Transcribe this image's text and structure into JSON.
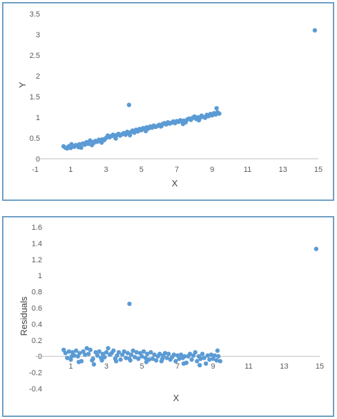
{
  "chart_data": [
    {
      "type": "scatter",
      "title": "",
      "xlabel": "X",
      "ylabel": "Y",
      "xlim": [
        -1,
        15
      ],
      "ylim": [
        0,
        3.5
      ],
      "xticks": [
        "-1",
        "1",
        "3",
        "5",
        "7",
        "9",
        "11",
        "13",
        "15"
      ],
      "yticks": [
        "0",
        "0.5",
        "1",
        "1.5",
        "2",
        "2.5",
        "3",
        "3.5"
      ],
      "grid": false,
      "color": "#5b9bd5",
      "series": [
        {
          "points": [
            [
              0.6,
              0.3
            ],
            [
              0.7,
              0.27
            ],
            [
              0.8,
              0.25
            ],
            [
              0.9,
              0.3
            ],
            [
              1.0,
              0.26
            ],
            [
              1.1,
              0.32
            ],
            [
              1.2,
              0.29
            ],
            [
              1.3,
              0.33
            ],
            [
              1.4,
              0.31
            ],
            [
              1.5,
              0.35
            ],
            [
              1.6,
              0.27
            ],
            [
              1.7,
              0.37
            ],
            [
              1.8,
              0.34
            ],
            [
              1.9,
              0.4
            ],
            [
              2.0,
              0.36
            ],
            [
              2.1,
              0.44
            ],
            [
              2.2,
              0.33
            ],
            [
              2.3,
              0.38
            ],
            [
              2.4,
              0.43
            ],
            [
              2.5,
              0.41
            ],
            [
              2.6,
              0.46
            ],
            [
              2.7,
              0.42
            ],
            [
              2.8,
              0.47
            ],
            [
              2.9,
              0.45
            ],
            [
              3.0,
              0.5
            ],
            [
              3.1,
              0.56
            ],
            [
              3.2,
              0.52
            ],
            [
              3.3,
              0.55
            ],
            [
              3.4,
              0.58
            ],
            [
              3.5,
              0.53
            ],
            [
              3.6,
              0.57
            ],
            [
              3.7,
              0.6
            ],
            [
              3.8,
              0.56
            ],
            [
              3.9,
              0.59
            ],
            [
              4.0,
              0.62
            ],
            [
              4.1,
              0.58
            ],
            [
              4.2,
              0.65
            ],
            [
              4.3,
              0.61
            ],
            [
              4.4,
              0.64
            ],
            [
              4.5,
              0.68
            ],
            [
              4.6,
              0.63
            ],
            [
              4.7,
              0.7
            ],
            [
              4.8,
              0.66
            ],
            [
              4.9,
              0.72
            ],
            [
              5.0,
              0.69
            ],
            [
              5.1,
              0.74
            ],
            [
              5.2,
              0.71
            ],
            [
              5.3,
              0.76
            ],
            [
              5.4,
              0.73
            ],
            [
              5.5,
              0.78
            ],
            [
              5.6,
              0.75
            ],
            [
              5.7,
              0.8
            ],
            [
              5.8,
              0.77
            ],
            [
              5.9,
              0.79
            ],
            [
              6.0,
              0.82
            ],
            [
              6.1,
              0.78
            ],
            [
              6.2,
              0.84
            ],
            [
              6.3,
              0.86
            ],
            [
              6.4,
              0.83
            ],
            [
              6.5,
              0.88
            ],
            [
              6.6,
              0.85
            ],
            [
              6.7,
              0.87
            ],
            [
              6.8,
              0.9
            ],
            [
              6.9,
              0.86
            ],
            [
              7.0,
              0.91
            ],
            [
              7.1,
              0.89
            ],
            [
              7.2,
              0.93
            ],
            [
              7.3,
              0.9
            ],
            [
              7.4,
              0.92
            ],
            [
              7.5,
              0.88
            ],
            [
              7.6,
              0.95
            ],
            [
              7.7,
              0.97
            ],
            [
              7.8,
              0.94
            ],
            [
              7.9,
              0.99
            ],
            [
              8.0,
              1.02
            ],
            [
              8.1,
              0.96
            ],
            [
              8.2,
              1.0
            ],
            [
              8.3,
              0.98
            ],
            [
              8.4,
              1.04
            ],
            [
              8.5,
              1.01
            ],
            [
              8.6,
              0.99
            ],
            [
              8.7,
              1.06
            ],
            [
              8.8,
              1.03
            ],
            [
              8.9,
              1.08
            ],
            [
              9.0,
              1.05
            ],
            [
              9.1,
              1.1
            ],
            [
              9.2,
              1.07
            ],
            [
              9.25,
              1.22
            ],
            [
              9.3,
              1.12
            ],
            [
              9.4,
              1.09
            ],
            [
              1.05,
              0.35
            ],
            [
              1.45,
              0.28
            ],
            [
              2.25,
              0.4
            ],
            [
              2.75,
              0.39
            ],
            [
              3.55,
              0.49
            ],
            [
              4.35,
              0.57
            ],
            [
              5.25,
              0.67
            ],
            [
              6.15,
              0.8
            ],
            [
              7.35,
              0.84
            ],
            [
              8.25,
              0.93
            ],
            [
              4.3,
              1.3
            ],
            [
              14.8,
              3.1
            ]
          ]
        }
      ]
    },
    {
      "type": "scatter",
      "title": "",
      "xlabel": "X",
      "ylabel": "Residuals",
      "xlim": [
        -1,
        15
      ],
      "ylim": [
        -0.4,
        1.6
      ],
      "xticks": [
        "1",
        "3",
        "5",
        "7",
        "9",
        "11",
        "13",
        "15"
      ],
      "yticks": [
        "-0.4",
        "-0.2",
        "0",
        "0.2",
        "0.4",
        "0.6",
        "0.8",
        "1",
        "1.2",
        "1.4",
        "1.6"
      ],
      "grid": false,
      "color": "#5b9bd5",
      "series": [
        {
          "points": [
            [
              0.6,
              0.08
            ],
            [
              0.7,
              0.04
            ],
            [
              0.8,
              -0.02
            ],
            [
              0.9,
              0.06
            ],
            [
              1.0,
              -0.04
            ],
            [
              1.1,
              0.05
            ],
            [
              1.2,
              0.01
            ],
            [
              1.3,
              0.07
            ],
            [
              1.4,
              0.0
            ],
            [
              1.5,
              0.04
            ],
            [
              1.6,
              -0.06
            ],
            [
              1.7,
              0.06
            ],
            [
              1.8,
              0.02
            ],
            [
              1.9,
              0.1
            ],
            [
              2.0,
              0.03
            ],
            [
              2.1,
              0.08
            ],
            [
              2.2,
              -0.05
            ],
            [
              2.3,
              -0.1
            ],
            [
              2.4,
              0.05
            ],
            [
              2.5,
              0.01
            ],
            [
              2.6,
              0.06
            ],
            [
              2.7,
              -0.02
            ],
            [
              2.8,
              0.03
            ],
            [
              2.9,
              -0.01
            ],
            [
              3.0,
              0.05
            ],
            [
              3.1,
              0.1
            ],
            [
              3.2,
              0.02
            ],
            [
              3.3,
              0.04
            ],
            [
              3.4,
              0.07
            ],
            [
              3.5,
              -0.03
            ],
            [
              3.6,
              0.01
            ],
            [
              3.7,
              0.05
            ],
            [
              3.8,
              -0.04
            ],
            [
              3.9,
              0.02
            ],
            [
              4.0,
              0.06
            ],
            [
              4.1,
              -0.02
            ],
            [
              4.2,
              0.04
            ],
            [
              4.3,
              -0.03
            ],
            [
              4.4,
              0.02
            ],
            [
              4.5,
              0.07
            ],
            [
              4.6,
              -0.01
            ],
            [
              4.7,
              0.05
            ],
            [
              4.8,
              -0.03
            ],
            [
              4.9,
              0.04
            ],
            [
              5.0,
              0.0
            ],
            [
              5.1,
              0.06
            ],
            [
              5.2,
              -0.02
            ],
            [
              5.3,
              0.03
            ],
            [
              5.4,
              -0.04
            ],
            [
              5.5,
              0.05
            ],
            [
              5.6,
              -0.03
            ],
            [
              5.7,
              0.02
            ],
            [
              5.8,
              -0.05
            ],
            [
              5.9,
              0.0
            ],
            [
              6.0,
              0.03
            ],
            [
              6.1,
              -0.06
            ],
            [
              6.2,
              0.01
            ],
            [
              6.3,
              0.04
            ],
            [
              6.4,
              -0.02
            ],
            [
              6.5,
              0.03
            ],
            [
              6.6,
              -0.04
            ],
            [
              6.7,
              -0.01
            ],
            [
              6.8,
              0.02
            ],
            [
              6.9,
              -0.06
            ],
            [
              7.0,
              0.01
            ],
            [
              7.1,
              -0.03
            ],
            [
              7.2,
              0.02
            ],
            [
              7.3,
              -0.02
            ],
            [
              7.4,
              0.0
            ],
            [
              7.5,
              -0.08
            ],
            [
              7.6,
              0.0
            ],
            [
              7.7,
              0.03
            ],
            [
              7.8,
              -0.04
            ],
            [
              7.9,
              0.01
            ],
            [
              8.0,
              0.05
            ],
            [
              8.1,
              -0.06
            ],
            [
              8.2,
              0.0
            ],
            [
              8.3,
              -0.03
            ],
            [
              8.4,
              0.03
            ],
            [
              8.5,
              -0.02
            ],
            [
              8.6,
              -0.09
            ],
            [
              8.7,
              0.01
            ],
            [
              8.8,
              -0.04
            ],
            [
              8.9,
              0.02
            ],
            [
              9.0,
              -0.03
            ],
            [
              9.1,
              0.01
            ],
            [
              9.2,
              -0.05
            ],
            [
              9.25,
              0.07
            ],
            [
              9.3,
              0.0
            ],
            [
              9.4,
              -0.06
            ],
            [
              1.05,
              0.0
            ],
            [
              1.45,
              -0.07
            ],
            [
              2.25,
              -0.03
            ],
            [
              2.75,
              -0.05
            ],
            [
              3.55,
              -0.06
            ],
            [
              4.35,
              -0.05
            ],
            [
              5.25,
              -0.07
            ],
            [
              6.15,
              -0.03
            ],
            [
              7.35,
              -0.09
            ],
            [
              8.25,
              -0.11
            ],
            [
              4.3,
              0.65
            ],
            [
              14.8,
              1.33
            ]
          ]
        }
      ]
    }
  ]
}
